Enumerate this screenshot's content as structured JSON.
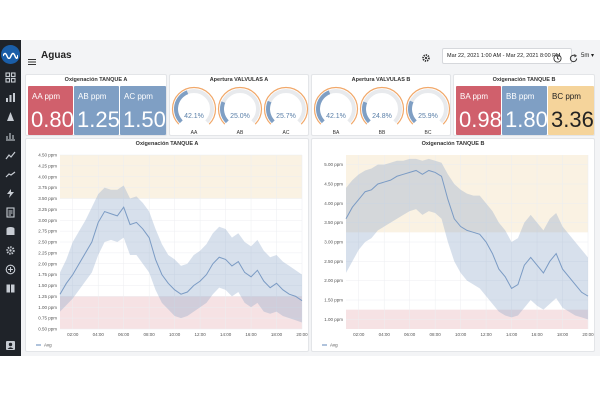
{
  "header": {
    "title": "Aguas",
    "time_range": "Mar 22, 2021 1:00 AM - Mar 22, 2021 8:00 PM",
    "refresh_interval": "5m"
  },
  "panels": {
    "oxig_a_stat": {
      "title": "Oxigenación TANQUE A",
      "stats": [
        {
          "label": "AA ppm",
          "value": "0.80",
          "color": "#d0606c"
        },
        {
          "label": "AB ppm",
          "value": "1.25",
          "color": "#7f9fc4"
        },
        {
          "label": "AC ppm",
          "value": "1.50",
          "color": "#7f9fc4"
        }
      ]
    },
    "apertura_a": {
      "title": "Apertura VALVULAS A",
      "gauges": [
        {
          "label": "AA",
          "value": "42.1%",
          "fraction": 0.421
        },
        {
          "label": "AB",
          "value": "25.0%",
          "fraction": 0.25
        },
        {
          "label": "AC",
          "value": "25.7%",
          "fraction": 0.257
        }
      ]
    },
    "apertura_b": {
      "title": "Apertura VALVULAS B",
      "gauges": [
        {
          "label": "BA",
          "value": "42.1%",
          "fraction": 0.421
        },
        {
          "label": "BB",
          "value": "24.8%",
          "fraction": 0.248
        },
        {
          "label": "BC",
          "value": "25.9%",
          "fraction": 0.259
        }
      ]
    },
    "oxig_b_stat": {
      "title": "Oxigenación TANQUE B",
      "stats": [
        {
          "label": "BA ppm",
          "value": "0.98",
          "color": "#d0606c"
        },
        {
          "label": "BB ppm",
          "value": "1.80",
          "color": "#7f9fc4"
        },
        {
          "label": "BC ppm",
          "value": "3.36",
          "color": "#f5d49b",
          "text_color": "#222"
        }
      ]
    }
  },
  "chart_data": [
    {
      "type": "line",
      "title": "Oxigenación TANQUE A",
      "y_ticks": [
        "0.50 ppm",
        "0.75 ppm",
        "1.00 ppm",
        "1.25 ppm",
        "1.50 ppm",
        "1.75 ppm",
        "2.00 ppm",
        "2.25 ppm",
        "2.50 ppm",
        "2.75 ppm",
        "3.00 ppm",
        "3.25 ppm",
        "3.50 ppm",
        "3.75 ppm",
        "4.00 ppm",
        "4.25 ppm",
        "4.50 ppm"
      ],
      "ylim": [
        0.5,
        4.5
      ],
      "x_ticks": [
        "02:00",
        "04:00",
        "06:00",
        "08:00",
        "10:00",
        "12:00",
        "14:00",
        "16:00",
        "18:00",
        "20:00"
      ],
      "xlim": [
        1,
        20
      ],
      "thresholds": [
        {
          "from": 0.5,
          "to": 1.25,
          "color": "#f6e2e4"
        },
        {
          "from": 3.5,
          "to": 4.5,
          "color": "#faf2e3"
        }
      ],
      "series": [
        {
          "name": "Avg",
          "color": "#7b9bc4",
          "x": [
            1.0,
            1.5,
            2.0,
            2.5,
            3.0,
            3.5,
            4.0,
            4.5,
            5.0,
            5.5,
            6.0,
            6.5,
            7.0,
            7.5,
            8.0,
            8.5,
            9.0,
            9.5,
            10.0,
            10.5,
            11.0,
            11.5,
            12.0,
            12.5,
            13.0,
            13.5,
            14.0,
            14.5,
            15.0,
            15.5,
            16.0,
            16.5,
            17.0,
            17.5,
            18.0,
            18.5,
            19.0,
            19.5,
            20.0
          ],
          "avg": [
            1.3,
            1.55,
            1.75,
            2.0,
            2.25,
            2.5,
            2.95,
            3.2,
            3.15,
            3.1,
            3.3,
            2.9,
            2.95,
            2.8,
            2.6,
            2.1,
            1.75,
            1.55,
            1.4,
            1.3,
            1.35,
            1.5,
            1.6,
            1.75,
            2.0,
            2.15,
            2.1,
            1.95,
            2.05,
            1.8,
            1.7,
            1.85,
            1.6,
            1.45,
            1.55,
            1.4,
            1.3,
            1.25,
            1.15
          ],
          "min": [
            0.9,
            1.05,
            1.2,
            1.4,
            1.6,
            1.8,
            2.2,
            2.5,
            2.55,
            2.5,
            2.6,
            2.2,
            2.2,
            2.0,
            1.8,
            1.4,
            1.1,
            0.95,
            0.8,
            0.75,
            0.8,
            0.9,
            1.0,
            1.1,
            1.3,
            1.45,
            1.4,
            1.25,
            1.35,
            1.1,
            1.0,
            1.1,
            0.9,
            0.85,
            0.9,
            0.8,
            0.75,
            0.7,
            0.65
          ],
          "max": [
            1.8,
            2.1,
            2.5,
            2.75,
            3.0,
            3.3,
            3.6,
            3.75,
            3.7,
            3.7,
            3.8,
            3.5,
            3.55,
            3.4,
            3.2,
            2.8,
            2.45,
            2.2,
            2.1,
            1.95,
            2.0,
            2.2,
            2.3,
            2.45,
            2.7,
            2.85,
            2.8,
            2.6,
            2.7,
            2.5,
            2.4,
            2.55,
            2.3,
            2.15,
            2.2,
            2.05,
            1.95,
            1.85,
            1.75
          ]
        }
      ],
      "legend": "bottom-left"
    },
    {
      "type": "line",
      "title": "Oxigenación TANQUE B",
      "y_ticks": [
        "1.00 ppm",
        "1.50 ppm",
        "2.00 ppm",
        "2.50 ppm",
        "3.00 ppm",
        "3.50 ppm",
        "4.00 ppm",
        "4.50 ppm",
        "5.00 ppm"
      ],
      "ylim": [
        0.75,
        5.25
      ],
      "x_ticks": [
        "02:00",
        "04:00",
        "06:00",
        "08:00",
        "10:00",
        "12:00",
        "14:00",
        "16:00",
        "18:00",
        "20:00"
      ],
      "xlim": [
        1,
        20
      ],
      "thresholds": [
        {
          "from": 0.75,
          "to": 1.25,
          "color": "#f6e2e4"
        },
        {
          "from": 3.25,
          "to": 5.25,
          "color": "#faf2e3"
        }
      ],
      "series": [
        {
          "name": "Avg",
          "color": "#7b9bc4",
          "x": [
            1.0,
            1.5,
            2.0,
            2.5,
            3.0,
            3.5,
            4.0,
            4.5,
            5.0,
            5.5,
            6.0,
            6.5,
            7.0,
            7.5,
            8.0,
            8.5,
            9.0,
            9.5,
            10.0,
            10.5,
            11.0,
            11.5,
            12.0,
            12.5,
            13.0,
            13.5,
            14.0,
            14.5,
            15.0,
            15.5,
            16.0,
            16.5,
            17.0,
            17.5,
            18.0,
            18.5,
            19.0,
            19.5,
            20.0
          ],
          "avg": [
            3.6,
            3.9,
            4.1,
            4.3,
            4.35,
            4.5,
            4.55,
            4.6,
            4.7,
            4.75,
            4.8,
            4.85,
            4.75,
            4.85,
            4.8,
            4.7,
            4.1,
            3.6,
            3.4,
            3.3,
            3.25,
            3.2,
            3.0,
            2.7,
            2.3,
            2.1,
            1.8,
            1.9,
            2.4,
            2.6,
            2.4,
            2.2,
            2.5,
            2.7,
            2.3,
            2.1,
            1.9,
            1.7,
            1.6
          ],
          "min": [
            2.2,
            2.5,
            2.8,
            3.0,
            3.1,
            3.3,
            3.4,
            3.5,
            3.6,
            3.7,
            3.8,
            3.85,
            3.7,
            3.8,
            3.75,
            3.6,
            3.0,
            2.5,
            2.2,
            2.0,
            1.9,
            1.8,
            1.6,
            1.4,
            1.2,
            1.1,
            1.05,
            1.1,
            1.3,
            1.5,
            1.35,
            1.25,
            1.4,
            1.55,
            1.3,
            1.2,
            1.1,
            1.05,
            1.0
          ],
          "max": [
            4.4,
            4.6,
            4.75,
            4.85,
            4.9,
            5.0,
            5.0,
            5.05,
            5.1,
            5.1,
            5.15,
            5.15,
            5.1,
            5.15,
            5.1,
            5.05,
            4.75,
            4.5,
            4.35,
            4.25,
            4.2,
            4.2,
            4.0,
            3.8,
            3.5,
            3.3,
            3.0,
            3.1,
            3.5,
            3.7,
            3.5,
            3.3,
            3.6,
            3.75,
            3.4,
            3.2,
            3.0,
            2.8,
            2.6
          ]
        }
      ],
      "legend": "bottom-left"
    }
  ],
  "icons": {
    "logo": "wave-logo-icon",
    "menu": "menu-icon",
    "settings": "gear-icon",
    "clock": "clock-icon",
    "refresh": "refresh-icon"
  },
  "sidebar": {
    "items": [
      "grid-icon",
      "bar-chart-icon",
      "cone-icon",
      "bar-trend-icon",
      "line-chart-icon",
      "trend-icon",
      "bolt-icon",
      "document-icon",
      "database-icon",
      "gear-icon",
      "plus-circle-icon",
      "book-icon",
      "user-icon"
    ]
  }
}
